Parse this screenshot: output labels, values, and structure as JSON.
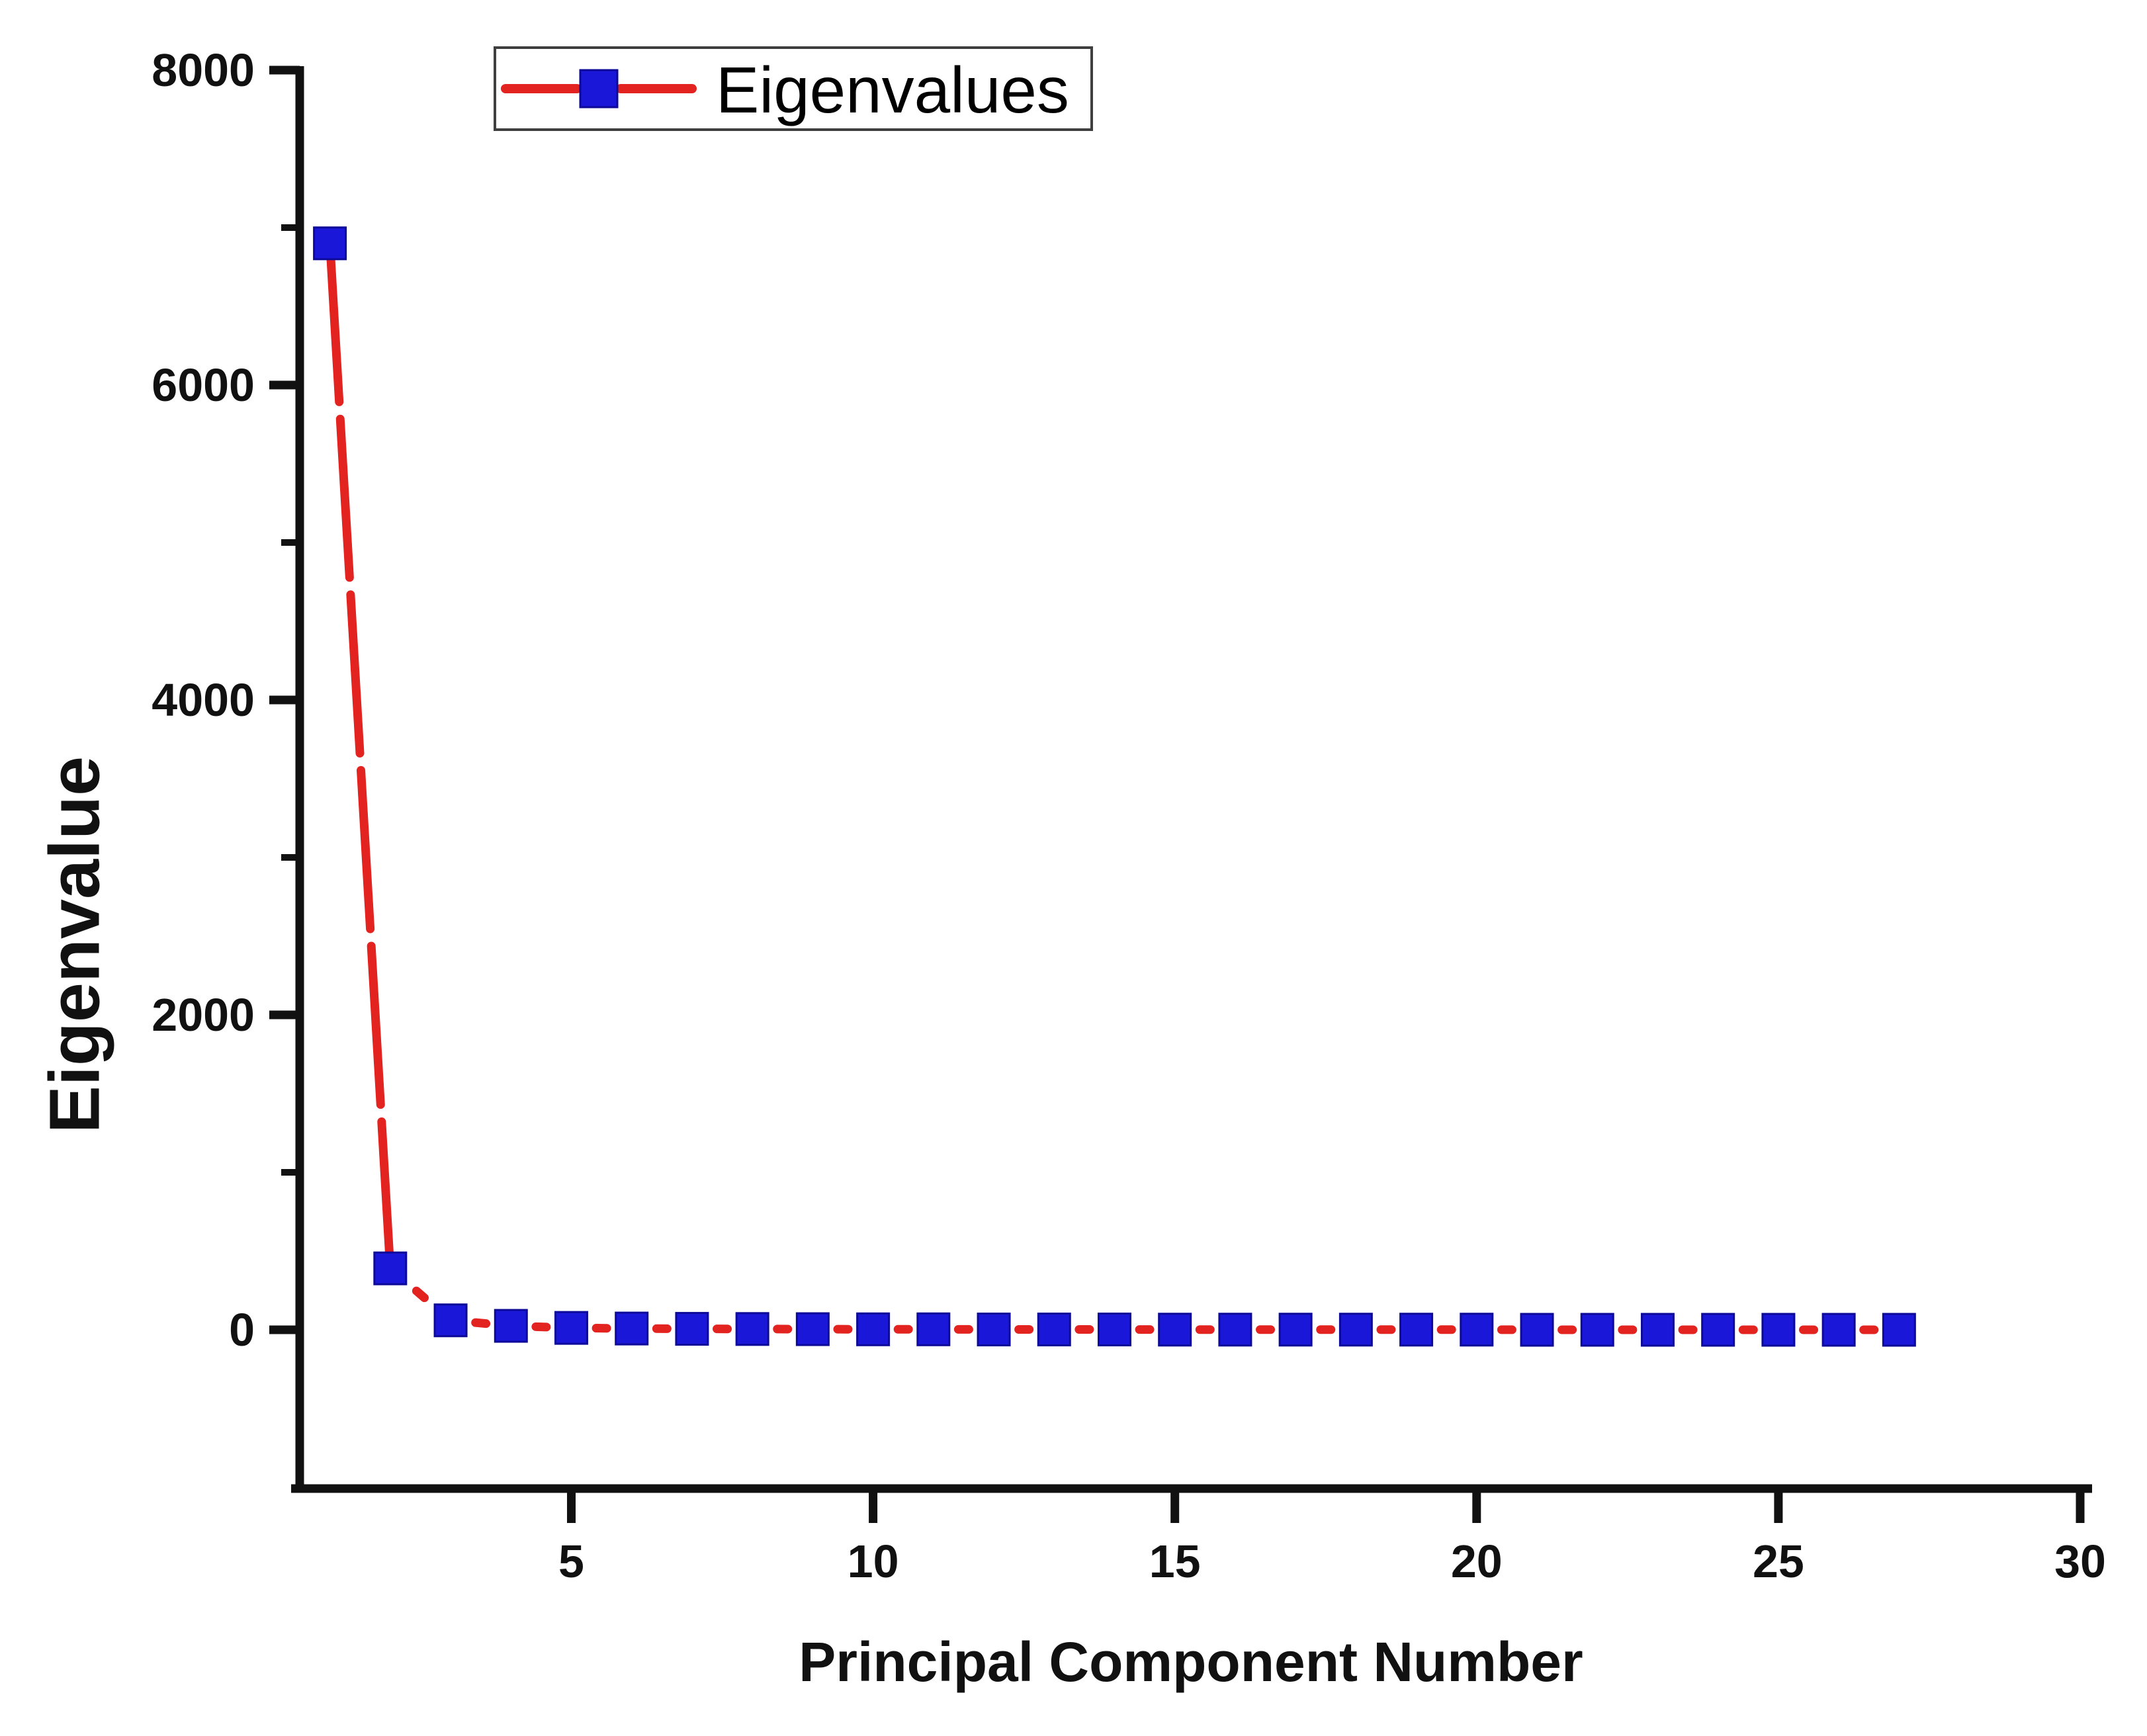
{
  "chart_data": {
    "type": "line",
    "title": "",
    "xlabel": "Principal Component Number",
    "ylabel": "Eigenvalue",
    "legend_label": "Eigenvalues",
    "legend_position": "top-left-inside",
    "x": [
      1,
      2,
      3,
      4,
      5,
      6,
      7,
      8,
      9,
      10,
      11,
      12,
      13,
      14,
      15,
      16,
      17,
      18,
      19,
      20,
      21,
      22,
      23,
      24,
      25,
      26,
      27
    ],
    "series": [
      {
        "name": "Eigenvalues",
        "values": [
          6900,
          390,
          60,
          25,
          12,
          8,
          6,
          5,
          4,
          3,
          3,
          2,
          2,
          2,
          1,
          1,
          1,
          1,
          1,
          1,
          0,
          0,
          0,
          0,
          0,
          0,
          0
        ]
      }
    ],
    "xlim": [
      0.5,
      30
    ],
    "ylim": [
      -1000,
      8000
    ],
    "x_ticks": [
      5,
      10,
      15,
      20,
      25,
      30
    ],
    "x_tick_labels": [
      "5",
      "10",
      "15",
      "20",
      "25",
      "30"
    ],
    "y_ticks_major": [
      0,
      2000,
      4000,
      6000,
      8000
    ],
    "y_tick_labels": [
      "0",
      "2000",
      "4000",
      "6000",
      "8000"
    ],
    "y_ticks_minor": [
      1000,
      3000,
      5000,
      7000
    ],
    "grid": false,
    "line_style": "dashed",
    "marker": "square",
    "colors": {
      "line": "#e2231f",
      "marker_fill": "#1b17d8",
      "marker_edge": "#0d0a99",
      "axis": "#111111",
      "legend_border": "#3f3f3f",
      "background": "#ffffff"
    }
  }
}
